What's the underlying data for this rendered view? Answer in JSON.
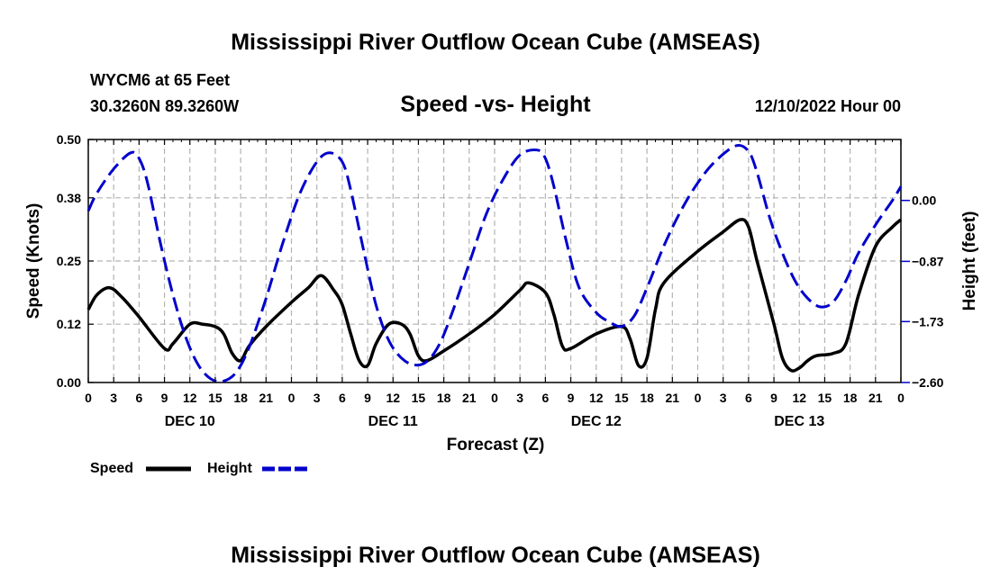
{
  "header": {
    "title": "Mississippi River Outflow Ocean Cube (AMSEAS)",
    "station": "WYCM6 at 65 Feet",
    "coords": "30.3260N  89.3260W",
    "plot_title": "Speed -vs- Height",
    "datetime": "12/10/2022 Hour 00"
  },
  "footer": {
    "title": "Mississippi River Outflow Ocean Cube (AMSEAS)"
  },
  "chart_data": {
    "type": "line",
    "title": "Speed -vs- Height",
    "xlabel": "Forecast (Z)",
    "ylabel": "Speed (Knots)",
    "y2label": "Height (feet)",
    "xlim": [
      0,
      96
    ],
    "ylim": [
      0,
      0.5
    ],
    "y2lim": [
      -2.6,
      0.87
    ],
    "grid": true,
    "x_tick_hours": [
      0,
      3,
      6,
      9,
      12,
      15,
      18,
      21,
      24,
      27,
      30,
      33,
      36,
      39,
      42,
      45,
      48,
      51,
      54,
      57,
      60,
      63,
      66,
      69,
      72,
      75,
      78,
      81,
      84,
      87,
      90,
      93,
      96
    ],
    "x_tick_labels": [
      "0",
      "3",
      "6",
      "9",
      "12",
      "15",
      "18",
      "21",
      "0",
      "3",
      "6",
      "9",
      "12",
      "15",
      "18",
      "21",
      "0",
      "3",
      "6",
      "9",
      "12",
      "15",
      "18",
      "21",
      "0",
      "3",
      "6",
      "9",
      "12",
      "15",
      "18",
      "21",
      "0"
    ],
    "day_labels": [
      {
        "label": "DEC 10",
        "hour": 12
      },
      {
        "label": "DEC 11",
        "hour": 36
      },
      {
        "label": "DEC 12",
        "hour": 60
      },
      {
        "label": "DEC 13",
        "hour": 84
      }
    ],
    "y_ticks": [
      0.0,
      0.12,
      0.25,
      0.38,
      0.5
    ],
    "y_tick_labels": [
      "0.00",
      "0.12",
      "0.25",
      "0.38",
      "0.50"
    ],
    "y2_ticks": [
      -2.6,
      -1.73,
      -0.87,
      0.0
    ],
    "y2_tick_labels": [
      "−2.60",
      "−1.73",
      "−0.87",
      "0.00"
    ],
    "series": [
      {
        "name": "Speed",
        "axis": "left",
        "color": "#000000",
        "style": "solid",
        "points": [
          [
            0,
            0.15
          ],
          [
            1,
            0.18
          ],
          [
            2.5,
            0.195
          ],
          [
            4,
            0.175
          ],
          [
            6,
            0.135
          ],
          [
            9,
            0.07
          ],
          [
            10,
            0.08
          ],
          [
            12,
            0.12
          ],
          [
            13.5,
            0.12
          ],
          [
            15,
            0.115
          ],
          [
            16,
            0.1
          ],
          [
            17,
            0.06
          ],
          [
            18,
            0.045
          ],
          [
            19,
            0.075
          ],
          [
            21,
            0.115
          ],
          [
            24,
            0.165
          ],
          [
            26,
            0.195
          ],
          [
            27.5,
            0.22
          ],
          [
            29,
            0.19
          ],
          [
            30,
            0.16
          ],
          [
            31,
            0.1
          ],
          [
            32,
            0.045
          ],
          [
            33,
            0.035
          ],
          [
            34,
            0.08
          ],
          [
            35.5,
            0.12
          ],
          [
            37,
            0.12
          ],
          [
            38,
            0.1
          ],
          [
            39,
            0.055
          ],
          [
            40,
            0.045
          ],
          [
            42,
            0.065
          ],
          [
            45,
            0.1
          ],
          [
            48,
            0.14
          ],
          [
            51,
            0.19
          ],
          [
            52,
            0.205
          ],
          [
            54,
            0.185
          ],
          [
            55,
            0.14
          ],
          [
            56,
            0.075
          ],
          [
            57,
            0.07
          ],
          [
            60,
            0.1
          ],
          [
            63,
            0.115
          ],
          [
            64,
            0.09
          ],
          [
            65,
            0.035
          ],
          [
            66,
            0.05
          ],
          [
            67,
            0.15
          ],
          [
            68,
            0.205
          ],
          [
            72,
            0.27
          ],
          [
            75,
            0.31
          ],
          [
            77,
            0.335
          ],
          [
            78,
            0.32
          ],
          [
            79,
            0.25
          ],
          [
            81,
            0.12
          ],
          [
            82,
            0.05
          ],
          [
            83,
            0.025
          ],
          [
            84,
            0.03
          ],
          [
            85,
            0.045
          ],
          [
            86,
            0.055
          ],
          [
            88,
            0.06
          ],
          [
            89.5,
            0.08
          ],
          [
            91,
            0.18
          ],
          [
            93,
            0.28
          ],
          [
            95,
            0.32
          ],
          [
            96,
            0.335
          ]
        ]
      },
      {
        "name": "Height",
        "axis": "right",
        "color": "#0000cc",
        "style": "dashed",
        "points": [
          [
            0,
            -0.15
          ],
          [
            1,
            0.1
          ],
          [
            3,
            0.45
          ],
          [
            5,
            0.68
          ],
          [
            6,
            0.6
          ],
          [
            7,
            0.25
          ],
          [
            8.5,
            -0.6
          ],
          [
            10,
            -1.35
          ],
          [
            11.5,
            -1.95
          ],
          [
            13,
            -2.35
          ],
          [
            14.5,
            -2.55
          ],
          [
            16,
            -2.58
          ],
          [
            17.5,
            -2.45
          ],
          [
            19,
            -2.1
          ],
          [
            21,
            -1.4
          ],
          [
            23,
            -0.6
          ],
          [
            25,
            0.1
          ],
          [
            27,
            0.55
          ],
          [
            28.5,
            0.68
          ],
          [
            30,
            0.55
          ],
          [
            31,
            0.15
          ],
          [
            32.5,
            -0.7
          ],
          [
            34,
            -1.5
          ],
          [
            35.5,
            -2.0
          ],
          [
            37,
            -2.25
          ],
          [
            38.5,
            -2.35
          ],
          [
            40,
            -2.3
          ],
          [
            41.5,
            -2.05
          ],
          [
            43,
            -1.6
          ],
          [
            45,
            -0.9
          ],
          [
            47,
            -0.2
          ],
          [
            49,
            0.3
          ],
          [
            51,
            0.65
          ],
          [
            53,
            0.72
          ],
          [
            54,
            0.6
          ],
          [
            55,
            0.2
          ],
          [
            56.5,
            -0.6
          ],
          [
            58,
            -1.25
          ],
          [
            60,
            -1.6
          ],
          [
            61.5,
            -1.73
          ],
          [
            63,
            -1.8
          ],
          [
            64.5,
            -1.65
          ],
          [
            66,
            -1.25
          ],
          [
            68,
            -0.65
          ],
          [
            70,
            -0.15
          ],
          [
            72,
            0.25
          ],
          [
            74,
            0.55
          ],
          [
            76.5,
            0.78
          ],
          [
            78,
            0.7
          ],
          [
            79,
            0.4
          ],
          [
            80.5,
            -0.25
          ],
          [
            82,
            -0.75
          ],
          [
            83.5,
            -1.15
          ],
          [
            85,
            -1.4
          ],
          [
            86.5,
            -1.52
          ],
          [
            88,
            -1.45
          ],
          [
            89.5,
            -1.15
          ],
          [
            91,
            -0.75
          ],
          [
            93,
            -0.35
          ],
          [
            95,
            0.0
          ],
          [
            96,
            0.2
          ]
        ]
      }
    ]
  }
}
